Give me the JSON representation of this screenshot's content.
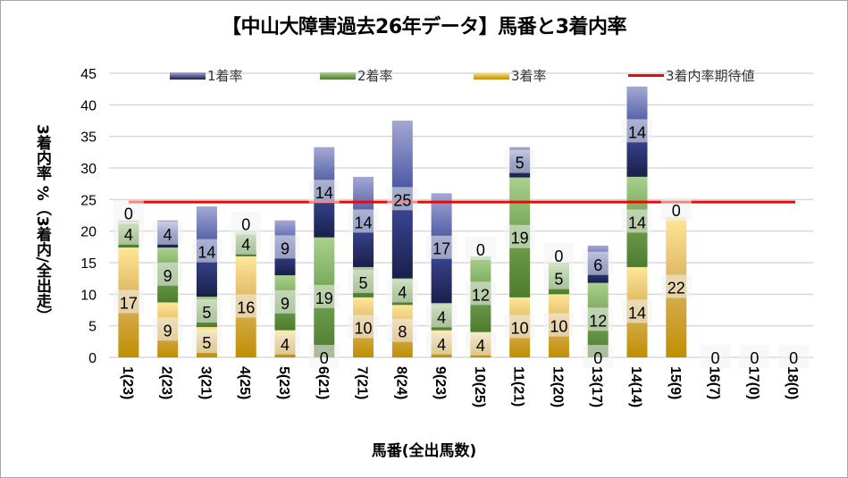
{
  "chart_data": {
    "type": "bar",
    "stacked": true,
    "title": "【中山大障害過去26年データ】馬番と3着内率",
    "xlabel": "馬番(全出馬数)",
    "ylabel": "3着内率 %（3着内/全出走）",
    "ylim": [
      0,
      45
    ],
    "yticks": [
      0,
      5,
      10,
      15,
      20,
      25,
      30,
      35,
      40,
      45
    ],
    "grid": true,
    "legend_position": "top",
    "categories": [
      "1(23)",
      "2(23)",
      "3(21)",
      "4(25)",
      "5(23)",
      "6(21)",
      "7(21)",
      "8(24)",
      "9(23)",
      "10(25)",
      "11(21)",
      "12(20)",
      "13(17)",
      "14(14)",
      "15(9)",
      "16(7)",
      "17(0)",
      "18(0)"
    ],
    "series": [
      {
        "name": "3着率",
        "color": "#d4a838",
        "values": [
          17.4,
          8.7,
          4.8,
          16.0,
          4.3,
          0.0,
          9.5,
          8.3,
          4.3,
          4.0,
          9.5,
          10.0,
          0.0,
          14.3,
          22.2,
          0,
          0,
          0
        ],
        "labels": [
          "17",
          "9",
          "5",
          "16",
          "4",
          "0",
          "10",
          "8",
          "4",
          "4",
          "10",
          "10",
          "0",
          "14",
          "22",
          "0",
          "0",
          "0"
        ]
      },
      {
        "name": "2着率",
        "color": "#6a9a4a",
        "values": [
          4.3,
          8.7,
          4.8,
          4.0,
          8.7,
          19.0,
          4.8,
          4.2,
          4.3,
          12.0,
          19.0,
          5.0,
          11.8,
          14.3,
          0.0,
          0,
          0,
          0
        ],
        "labels": [
          "4",
          "9",
          "5",
          "4",
          "9",
          "19",
          "5",
          "4",
          "4",
          "12",
          "19",
          "5",
          "12",
          "14",
          "0",
          "",
          "",
          ""
        ]
      },
      {
        "name": "1着率",
        "color": "#3a4590",
        "values": [
          0.0,
          4.3,
          14.3,
          0.0,
          8.7,
          14.3,
          14.3,
          25.0,
          17.4,
          0.0,
          4.8,
          0.0,
          5.9,
          14.3,
          0.0,
          0,
          0,
          0
        ],
        "labels": [
          "0",
          "4",
          "14",
          "0",
          "9",
          "14",
          "14",
          "25",
          "17",
          "0",
          "5",
          "0",
          "6",
          "14",
          "",
          "",
          "",
          ""
        ]
      }
    ],
    "reference_line": {
      "name": "3着内率期待値",
      "color": "#ff0000",
      "value": 24.6
    }
  }
}
